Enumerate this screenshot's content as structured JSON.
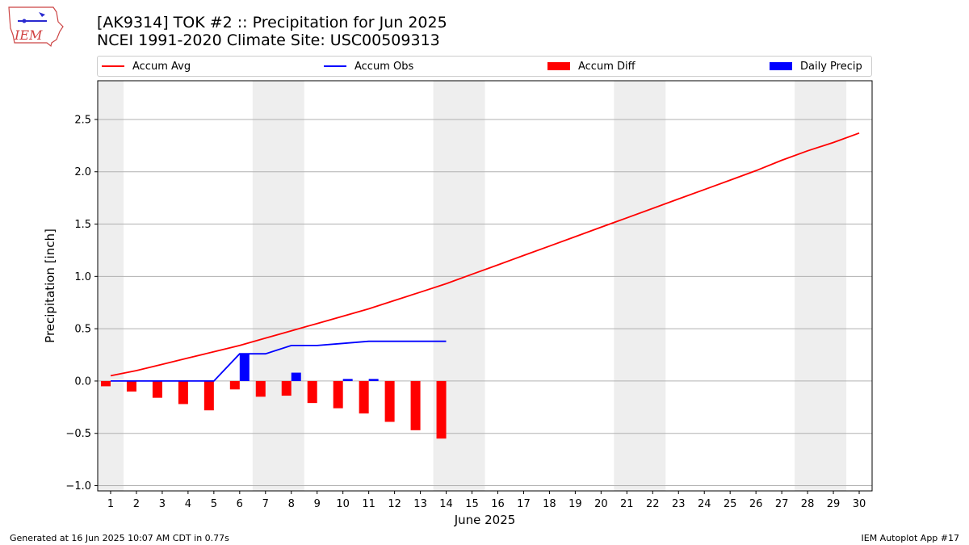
{
  "header": {
    "title_line1": "[AK9314] TOK #2 :: Precipitation for Jun 2025",
    "title_line2": "NCEI 1991-2020 Climate Site: USC00509313"
  },
  "logo": {
    "text": "IEM",
    "icon": "iem-iowa-logo"
  },
  "footer": {
    "left": "Generated at 16 Jun 2025 10:07 AM CDT in 0.77s",
    "right": "IEM Autoplot App #17"
  },
  "colors": {
    "avg": "#ff0000",
    "obs": "#0000ff",
    "diff": "#ff0000",
    "daily": "#0000ff",
    "weekend": "#eeeeee",
    "grid": "#b0b0b0"
  },
  "chart_data": {
    "type": "bar",
    "xlabel": "June 2025",
    "ylabel": "Precipitation [inch]",
    "xlim": [
      0.5,
      30.5
    ],
    "ylim": [
      -1.05,
      2.87
    ],
    "yticks": [
      -1.0,
      -0.5,
      0.0,
      0.5,
      1.0,
      1.5,
      2.0,
      2.5
    ],
    "ytick_labels": [
      "−1.0",
      "−0.5",
      "0.0",
      "0.5",
      "1.0",
      "1.5",
      "2.0",
      "2.5"
    ],
    "days": [
      1,
      2,
      3,
      4,
      5,
      6,
      7,
      8,
      9,
      10,
      11,
      12,
      13,
      14,
      15,
      16,
      17,
      18,
      19,
      20,
      21,
      22,
      23,
      24,
      25,
      26,
      27,
      28,
      29,
      30
    ],
    "grid": "horizontal",
    "legend_position": "top",
    "weekend_spans": [
      [
        0.5,
        1.5
      ],
      [
        6.5,
        8.5
      ],
      [
        13.5,
        15.5
      ],
      [
        20.5,
        22.5
      ],
      [
        27.5,
        29.5
      ]
    ],
    "series": [
      {
        "name": "Accum Avg",
        "kind": "line",
        "color": "#ff0000",
        "days": [
          1,
          2,
          3,
          4,
          5,
          6,
          7,
          8,
          9,
          10,
          11,
          12,
          13,
          14,
          15,
          16,
          17,
          18,
          19,
          20,
          21,
          22,
          23,
          24,
          25,
          26,
          27,
          28,
          29,
          30
        ],
        "values": [
          0.05,
          0.1,
          0.16,
          0.22,
          0.28,
          0.34,
          0.41,
          0.48,
          0.55,
          0.62,
          0.69,
          0.77,
          0.85,
          0.93,
          1.02,
          1.11,
          1.2,
          1.29,
          1.38,
          1.47,
          1.56,
          1.65,
          1.74,
          1.83,
          1.92,
          2.01,
          2.11,
          2.2,
          2.28,
          2.37
        ]
      },
      {
        "name": "Accum Obs",
        "kind": "line",
        "color": "#0000ff",
        "days": [
          1,
          2,
          3,
          4,
          5,
          6,
          7,
          8,
          9,
          10,
          11,
          12,
          13,
          14
        ],
        "values": [
          0.0,
          0.0,
          0.0,
          0.0,
          0.0,
          0.26,
          0.26,
          0.34,
          0.34,
          0.36,
          0.38,
          0.38,
          0.38,
          0.38
        ]
      },
      {
        "name": "Accum Diff",
        "kind": "bar",
        "color": "#ff0000",
        "days": [
          1,
          2,
          3,
          4,
          5,
          6,
          7,
          8,
          9,
          10,
          11,
          12,
          13,
          14
        ],
        "values": [
          -0.05,
          -0.1,
          -0.16,
          -0.22,
          -0.28,
          -0.08,
          -0.15,
          -0.14,
          -0.21,
          -0.26,
          -0.31,
          -0.39,
          -0.47,
          -0.55
        ]
      },
      {
        "name": "Daily Precip",
        "kind": "bar",
        "color": "#0000ff",
        "days": [
          1,
          2,
          3,
          4,
          5,
          6,
          7,
          8,
          9,
          10,
          11,
          12,
          13,
          14
        ],
        "values": [
          0,
          0,
          0,
          0,
          0,
          0.26,
          0,
          0.08,
          0,
          0.02,
          0.02,
          0,
          0,
          0
        ]
      }
    ]
  }
}
